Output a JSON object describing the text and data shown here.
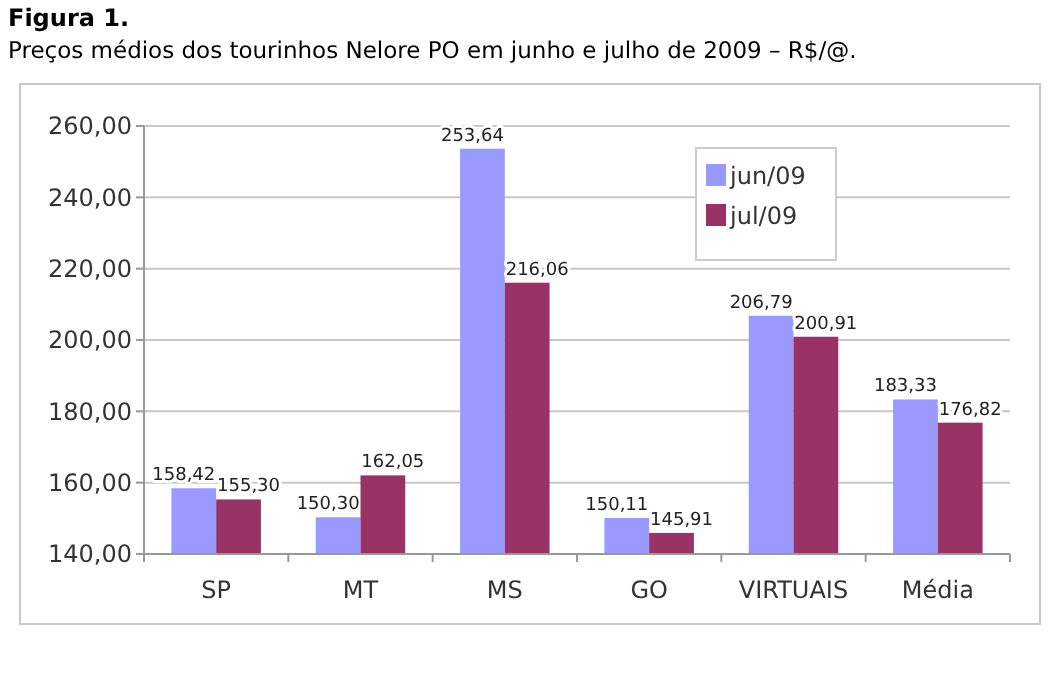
{
  "chart_data": {
    "type": "bar",
    "title": "Figura 1.",
    "subtitle": "Preços médios dos tourinhos Nelore PO em junho e julho de 2009 – R$/@.",
    "categories": [
      "SP",
      "MT",
      "MS",
      "GO",
      "VIRTUAIS",
      "Média"
    ],
    "series": [
      {
        "name": "jun/09",
        "color": "#9999ff",
        "values": [
          158.42,
          150.3,
          253.64,
          150.11,
          206.79,
          183.33
        ],
        "value_labels": [
          "158,42",
          "150,30",
          "253,64",
          "150,11",
          "206,79",
          "183,33"
        ]
      },
      {
        "name": "jul/09",
        "color": "#993366",
        "values": [
          155.3,
          162.05,
          216.06,
          145.91,
          200.91,
          176.82
        ],
        "value_labels": [
          "155,30",
          "162,05",
          "216,06",
          "145,91",
          "200,91",
          "176,82"
        ]
      }
    ],
    "ylim": [
      140,
      260
    ],
    "yticks": [
      {
        "value": 140,
        "label": "140,00"
      },
      {
        "value": 160,
        "label": "160,00"
      },
      {
        "value": 180,
        "label": "180,00"
      },
      {
        "value": 200,
        "label": "200,00"
      },
      {
        "value": 220,
        "label": "220,00"
      },
      {
        "value": 240,
        "label": "240,00"
      },
      {
        "value": 260,
        "label": "260,00"
      }
    ],
    "grid": "y",
    "legend": "top right"
  }
}
